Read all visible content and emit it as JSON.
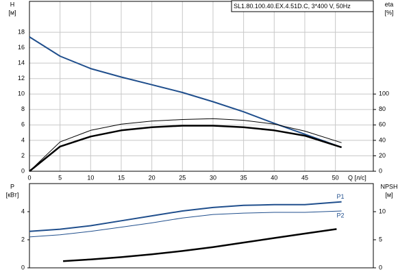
{
  "chart_data": [
    {
      "type": "line",
      "title": "SL1.80.100.40.EX.4.51D.C, 3*400 V, 50Hz",
      "y_label": "H",
      "y_unit": "[м]",
      "y2_label": "eta",
      "y2_unit": "[%]",
      "x_label": "Q [л/с]",
      "x": [
        0,
        5,
        10,
        15,
        20,
        25,
        30,
        35,
        40,
        45,
        51
      ],
      "xlim": [
        0,
        56.2
      ],
      "xticks": [
        0,
        5,
        10,
        15,
        20,
        25,
        30,
        35,
        40,
        45,
        50
      ],
      "ylim": [
        0,
        22
      ],
      "yticks": [
        0,
        2,
        4,
        6,
        8,
        10,
        12,
        14,
        16,
        18
      ],
      "y2lim": [
        0,
        220
      ],
      "y2ticks": [
        0,
        20,
        40,
        60,
        80,
        100
      ],
      "grid": true,
      "series": [
        {
          "color": "#1f4e8c",
          "linewidth": 2,
          "values": [
            17.4,
            14.9,
            13.3,
            12.2,
            11.2,
            10.2,
            9.0,
            7.7,
            6.2,
            4.8,
            3.1
          ]
        },
        {
          "color": "#000000",
          "linewidth": 1,
          "axis": "y2",
          "values": [
            0,
            38,
            53,
            61,
            65,
            67,
            68,
            66,
            61,
            52,
            37
          ]
        },
        {
          "color": "#000000",
          "linewidth": 2.5,
          "axis": "y2",
          "values": [
            0,
            32,
            45,
            53,
            57,
            59,
            59,
            57,
            53,
            46,
            31
          ]
        }
      ]
    },
    {
      "type": "line",
      "y_label": "P",
      "y_unit": "[кВт]",
      "y2_label": "NPSH",
      "y2_unit": "[м]",
      "x": [
        0,
        5,
        10,
        15,
        20,
        25,
        30,
        35,
        40,
        45,
        51
      ],
      "xlim": [
        0,
        56.2
      ],
      "ylim": [
        0,
        6
      ],
      "yticks": [
        0,
        2,
        4
      ],
      "y2lim": [
        0,
        15
      ],
      "y2ticks": [
        0,
        5,
        10
      ],
      "grid": false,
      "series": [
        {
          "name": "P1",
          "color": "#1f4e8c",
          "linewidth": 2,
          "values": [
            2.6,
            2.75,
            3.0,
            3.35,
            3.7,
            4.05,
            4.3,
            4.45,
            4.5,
            4.5,
            4.7
          ]
        },
        {
          "name": "P2",
          "color": "#1f4e8c",
          "linewidth": 1,
          "values": [
            2.2,
            2.35,
            2.6,
            2.9,
            3.2,
            3.55,
            3.8,
            3.9,
            3.95,
            3.95,
            4.05
          ]
        },
        {
          "color": "#000000",
          "linewidth": 2.5,
          "axis": "y2",
          "x": [
            5.5,
            10,
            15,
            20,
            25,
            30,
            35,
            40,
            45,
            50.2
          ],
          "values": [
            1.2,
            1.5,
            1.9,
            2.4,
            3.0,
            3.7,
            4.5,
            5.3,
            6.1,
            6.9
          ]
        }
      ]
    }
  ]
}
